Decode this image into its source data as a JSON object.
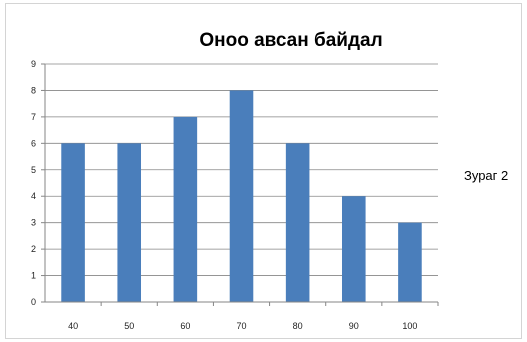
{
  "chart_data": {
    "type": "bar",
    "title": "Оноо авсан байдал",
    "xlabel": "",
    "ylabel": "",
    "categories": [
      "40",
      "50",
      "60",
      "70",
      "80",
      "90",
      "100"
    ],
    "values": [
      6,
      6,
      7,
      8,
      6,
      4,
      3
    ],
    "yticks": [
      "0",
      "1",
      "2",
      "3",
      "4",
      "5",
      "6",
      "7",
      "8",
      "9"
    ],
    "ylim": [
      0,
      9
    ],
    "grid": true,
    "legend": "none",
    "bar_color": "#4a7ebb",
    "side_label": "Зураг 2"
  }
}
